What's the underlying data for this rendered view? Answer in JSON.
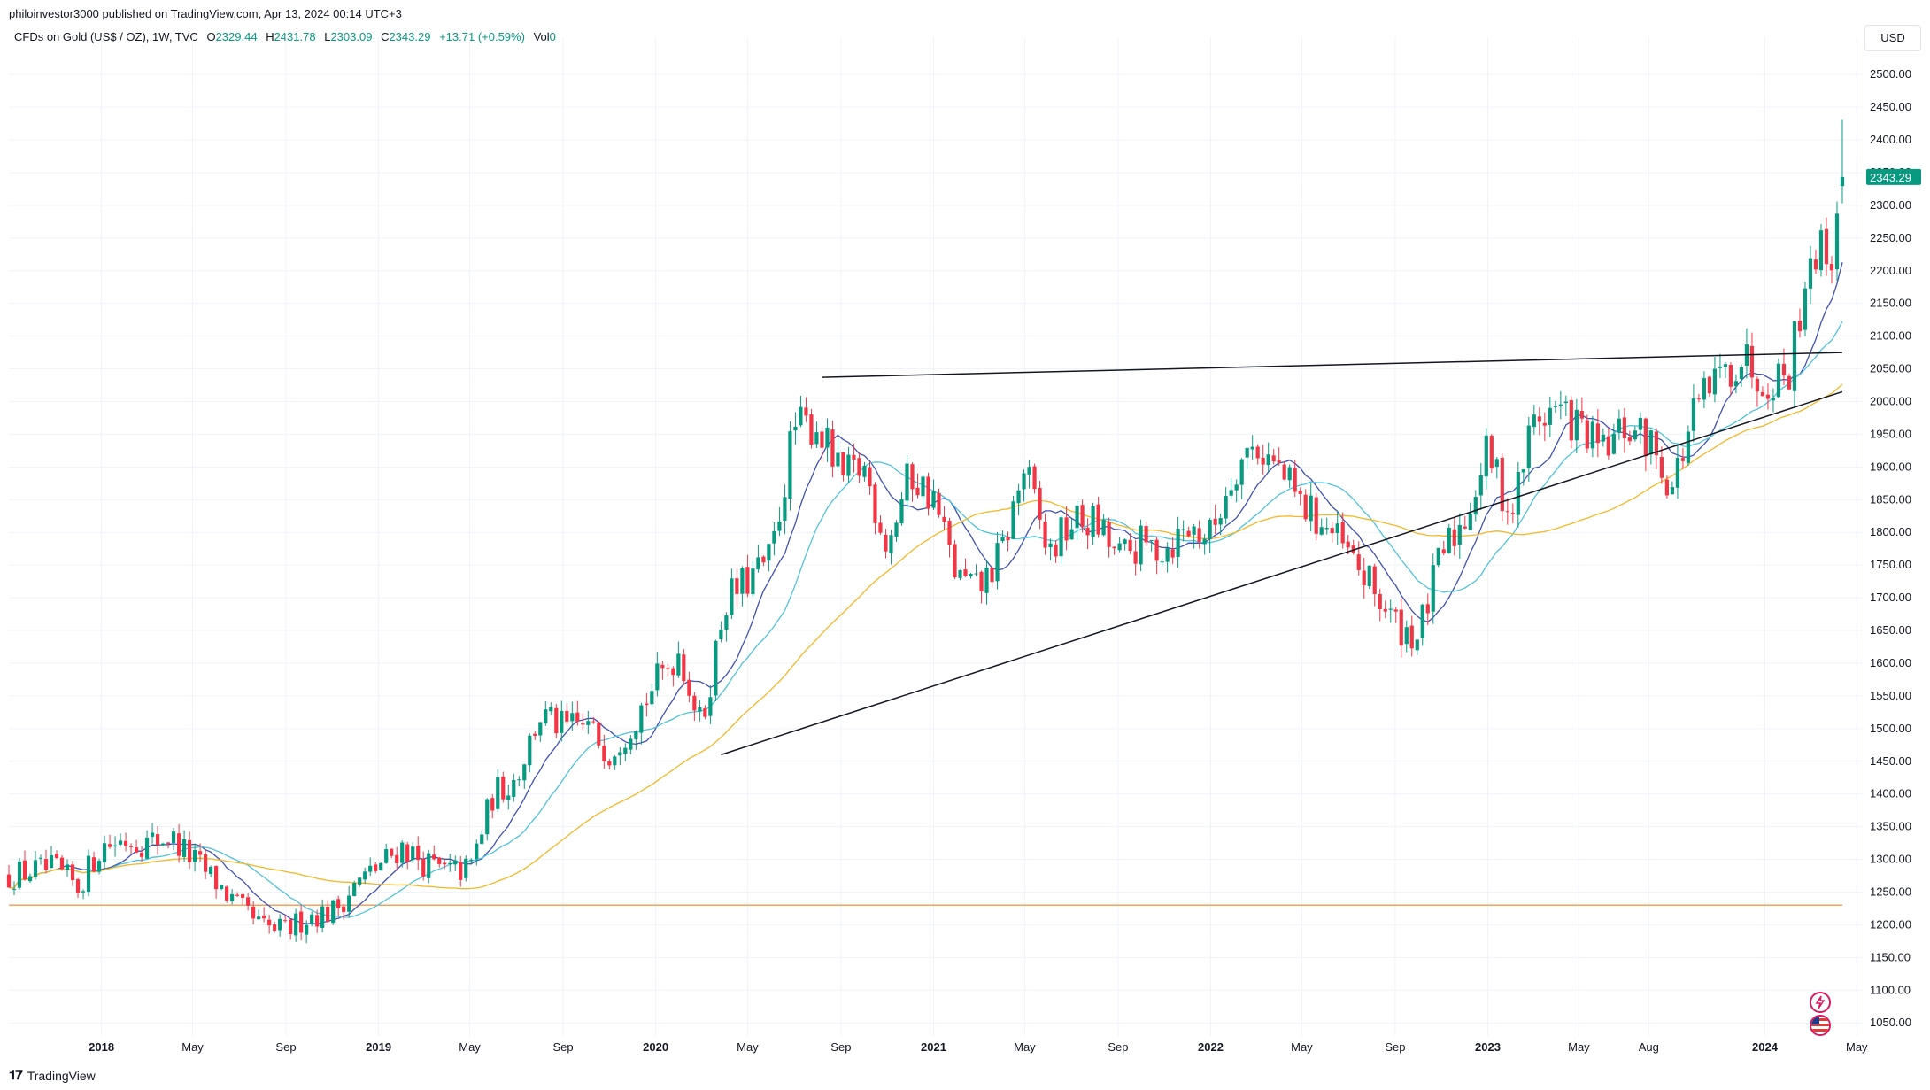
{
  "header": {
    "published": "philoinvestor3000 published on TradingView.com, Apr 13, 2024 00:14 UTC+3",
    "symbol": "CFDs on Gold (US$ / OZ), 1W, TVC",
    "o_label": "O",
    "o_value": "2329.44",
    "h_label": "H",
    "h_value": "2431.78",
    "l_label": "L",
    "l_value": "2303.09",
    "c_label": "C",
    "c_value": "2343.29",
    "change": "+13.71 (+0.59%)",
    "vol_label": "Vol",
    "vol_value": "0"
  },
  "currency_button": "USD",
  "brand": "TradingView",
  "colors": {
    "up": "#089981",
    "down": "#f23645",
    "ma_fast": "#3f51b5",
    "ma_mid": "#4fc3dc",
    "ma_slow": "#f5b727",
    "support_line": "#f5a15a",
    "trendline": "#131722",
    "grid": "#f0f3fa"
  },
  "icons": [
    "lightning-icon",
    "us-flag-icon"
  ],
  "chart_data": {
    "type": "candlestick",
    "title": "CFDs on Gold (US$ / OZ), 1W, TVC",
    "y_ticks": [
      "1050.00",
      "1100.00",
      "1150.00",
      "1200.00",
      "1250.00",
      "1300.00",
      "1350.00",
      "1400.00",
      "1450.00",
      "1500.00",
      "1550.00",
      "1600.00",
      "1650.00",
      "1700.00",
      "1750.00",
      "1800.00",
      "1850.00",
      "1900.00",
      "1950.00",
      "2000.00",
      "2050.00",
      "2100.00",
      "2150.00",
      "2200.00",
      "2250.00",
      "2300.00",
      "2350.00",
      "2400.00",
      "2450.00",
      "2500.00"
    ],
    "ylim": [
      1030,
      2530
    ],
    "x_ticks": [
      {
        "label": "2018",
        "date": "2018-01-01",
        "bold": true
      },
      {
        "label": "May",
        "date": "2018-05-01"
      },
      {
        "label": "Sep",
        "date": "2018-09-01"
      },
      {
        "label": "2019",
        "date": "2019-01-01",
        "bold": true
      },
      {
        "label": "May",
        "date": "2019-05-01"
      },
      {
        "label": "Sep",
        "date": "2019-09-01"
      },
      {
        "label": "2020",
        "date": "2020-01-01",
        "bold": true
      },
      {
        "label": "May",
        "date": "2020-05-01"
      },
      {
        "label": "Sep",
        "date": "2020-09-01"
      },
      {
        "label": "2021",
        "date": "2021-01-01",
        "bold": true
      },
      {
        "label": "May",
        "date": "2021-05-01"
      },
      {
        "label": "Sep",
        "date": "2021-09-01"
      },
      {
        "label": "2022",
        "date": "2022-01-01",
        "bold": true
      },
      {
        "label": "May",
        "date": "2022-05-01"
      },
      {
        "label": "Sep",
        "date": "2022-09-01"
      },
      {
        "label": "2023",
        "date": "2023-01-01",
        "bold": true
      },
      {
        "label": "May",
        "date": "2023-05-01"
      },
      {
        "label": "Aug",
        "date": "2023-08-01"
      },
      {
        "label": "2024",
        "date": "2024-01-01",
        "bold": true
      },
      {
        "label": "May",
        "date": "2024-05-01"
      }
    ],
    "xlim": [
      "2017-09-01",
      "2024-05-10"
    ],
    "last_price": "2343.29",
    "close_path": [
      [
        "2017-09-01",
        1275
      ],
      [
        "2017-10-01",
        1282
      ],
      [
        "2017-11-01",
        1285
      ],
      [
        "2017-12-01",
        1257
      ],
      [
        "2018-01-01",
        1320
      ],
      [
        "2018-02-01",
        1330
      ],
      [
        "2018-03-01",
        1325
      ],
      [
        "2018-04-01",
        1335
      ],
      [
        "2018-05-01",
        1300
      ],
      [
        "2018-06-01",
        1265
      ],
      [
        "2018-07-01",
        1225
      ],
      [
        "2018-08-01",
        1195
      ],
      [
        "2018-09-01",
        1190
      ],
      [
        "2018-10-01",
        1215
      ],
      [
        "2018-11-01",
        1220
      ],
      [
        "2018-12-01",
        1260
      ],
      [
        "2019-01-01",
        1290
      ],
      [
        "2019-02-01",
        1320
      ],
      [
        "2019-03-01",
        1295
      ],
      [
        "2019-04-01",
        1280
      ],
      [
        "2019-05-01",
        1285
      ],
      [
        "2019-06-01",
        1400
      ],
      [
        "2019-07-01",
        1425
      ],
      [
        "2019-08-01",
        1520
      ],
      [
        "2019-09-01",
        1500
      ],
      [
        "2019-10-01",
        1505
      ],
      [
        "2019-11-01",
        1465
      ],
      [
        "2019-12-01",
        1510
      ],
      [
        "2020-01-01",
        1570
      ],
      [
        "2020-02-01",
        1620
      ],
      [
        "2020-03-01",
        1500
      ],
      [
        "2020-04-01",
        1695
      ],
      [
        "2020-05-01",
        1725
      ],
      [
        "2020-06-01",
        1760
      ],
      [
        "2020-07-01",
        1960
      ],
      [
        "2020-08-01",
        1965
      ],
      [
        "2020-09-01",
        1880
      ],
      [
        "2020-10-01",
        1900
      ],
      [
        "2020-11-01",
        1780
      ],
      [
        "2020-12-01",
        1890
      ],
      [
        "2021-01-01",
        1850
      ],
      [
        "2021-02-01",
        1730
      ],
      [
        "2021-03-01",
        1710
      ],
      [
        "2021-04-01",
        1770
      ],
      [
        "2021-05-01",
        1900
      ],
      [
        "2021-06-01",
        1765
      ],
      [
        "2021-07-01",
        1815
      ],
      [
        "2021-08-01",
        1815
      ],
      [
        "2021-09-01",
        1760
      ],
      [
        "2021-10-01",
        1780
      ],
      [
        "2021-11-01",
        1775
      ],
      [
        "2021-12-01",
        1805
      ],
      [
        "2022-01-01",
        1795
      ],
      [
        "2022-02-01",
        1900
      ],
      [
        "2022-03-01",
        1935
      ],
      [
        "2022-04-01",
        1895
      ],
      [
        "2022-05-01",
        1840
      ],
      [
        "2022-06-01",
        1810
      ],
      [
        "2022-07-01",
        1765
      ],
      [
        "2022-08-01",
        1715
      ],
      [
        "2022-09-01",
        1660
      ],
      [
        "2022-10-01",
        1640
      ],
      [
        "2022-11-01",
        1765
      ],
      [
        "2022-12-01",
        1820
      ],
      [
        "2023-01-01",
        1925
      ],
      [
        "2023-02-01",
        1825
      ],
      [
        "2023-03-01",
        1970
      ],
      [
        "2023-04-01",
        1990
      ],
      [
        "2023-05-01",
        1960
      ],
      [
        "2023-06-01",
        1920
      ],
      [
        "2023-07-01",
        1960
      ],
      [
        "2023-08-01",
        1940
      ],
      [
        "2023-09-01",
        1870
      ],
      [
        "2023-10-01",
        1985
      ],
      [
        "2023-11-01",
        2035
      ],
      [
        "2023-12-01",
        2070
      ],
      [
        "2024-01-01",
        2035
      ],
      [
        "2024-02-01",
        2045
      ],
      [
        "2024-03-01",
        2230
      ],
      [
        "2024-03-29",
        2230
      ],
      [
        "2024-04-12",
        2343.29
      ]
    ],
    "moving_averages": [
      {
        "color_key": "ma_fast",
        "period_weeks": 10
      },
      {
        "color_key": "ma_mid",
        "period_weeks": 20
      },
      {
        "color_key": "ma_slow",
        "period_weeks": 50
      }
    ],
    "support_level": 1230,
    "trendlines": [
      {
        "from": [
          "2020-08-07",
          2037
        ],
        "to": [
          "2024-04-12",
          2075
        ]
      },
      {
        "from": [
          "2020-03-27",
          1460
        ],
        "to": [
          "2024-04-12",
          2015
        ]
      }
    ]
  }
}
